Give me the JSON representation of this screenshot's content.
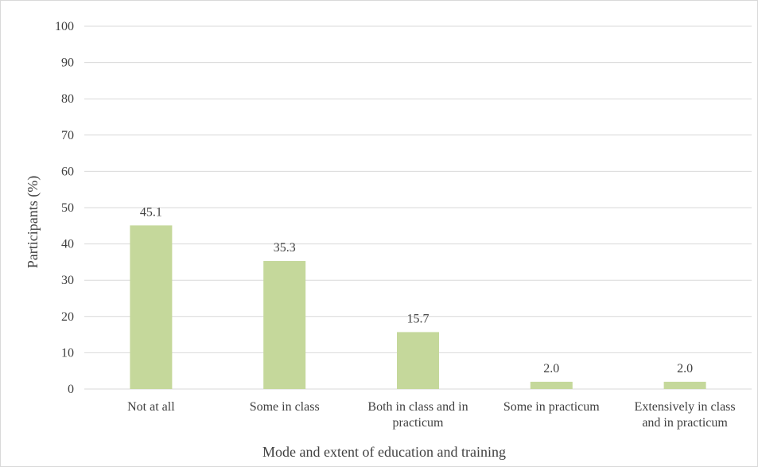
{
  "chart_data": {
    "type": "bar",
    "title": "",
    "xlabel": "Mode and extent of education and training",
    "ylabel": "Participants (%)",
    "ylim": [
      0,
      100
    ],
    "yticks": [
      "0",
      "10",
      "20",
      "30",
      "40",
      "50",
      "60",
      "70",
      "80",
      "90",
      "100"
    ],
    "categories": [
      [
        "Not at all"
      ],
      [
        "Some in class"
      ],
      [
        "Both in class and in",
        "practicum"
      ],
      [
        "Some in practicum"
      ],
      [
        "Extensively in class",
        "and in practicum"
      ]
    ],
    "values": [
      45.1,
      35.3,
      15.7,
      2.0,
      2.0
    ],
    "data_labels": [
      "45.1",
      "35.3",
      "15.7",
      "2.0",
      "2.0"
    ],
    "grid": true,
    "legend": "none",
    "colors": {
      "bar": "#c5d89b",
      "grid": "#d9d9d9",
      "text": "#404040"
    }
  }
}
